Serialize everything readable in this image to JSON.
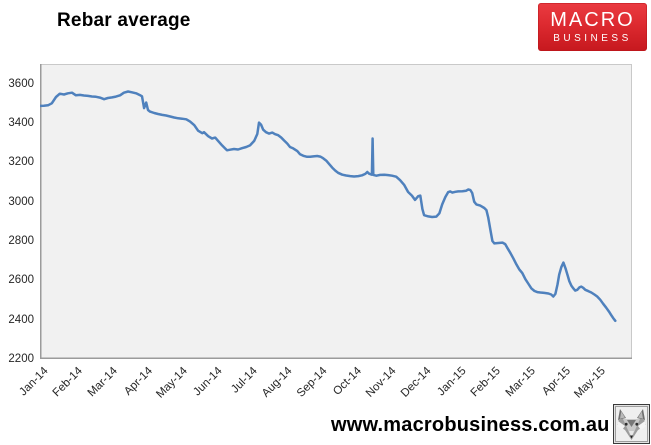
{
  "header": {
    "title": "Rebar average",
    "logo": {
      "line1": "MACRO",
      "line2": "BUSINESS",
      "bg_color": "#d8232a",
      "text_color": "#ffffff"
    }
  },
  "footer": {
    "url": "www.macrobusiness.com.au"
  },
  "icons": {
    "wolf": "wolf-head-logo"
  },
  "chart_data": {
    "type": "line",
    "title": "Rebar average",
    "series_name": "Rebar average",
    "line_color": "#4f81bd",
    "plot_bg": "#f1f1f1",
    "grid": "off",
    "legend": "none",
    "ylim": [
      2200,
      3700
    ],
    "y_ticks": [
      2200,
      2400,
      2600,
      2800,
      3000,
      3200,
      3400,
      3600
    ],
    "x_tick_labels": [
      "Jan-14",
      "Feb-14",
      "Mar-14",
      "Apr-14",
      "May-14",
      "Jun-14",
      "Jul-14",
      "Aug-14",
      "Sep-14",
      "Oct-14",
      "Nov-14",
      "Dec-14",
      "Jan-15",
      "Feb-15",
      "Mar-15",
      "Apr-15",
      "May-15"
    ],
    "x_axis_span_months": 17,
    "points": [
      [
        0,
        3487
      ],
      [
        0.11,
        3488
      ],
      [
        0.23,
        3490
      ],
      [
        0.34,
        3500
      ],
      [
        0.46,
        3532
      ],
      [
        0.57,
        3549
      ],
      [
        0.69,
        3545
      ],
      [
        0.8,
        3551
      ],
      [
        0.92,
        3554
      ],
      [
        1.03,
        3541
      ],
      [
        1.15,
        3543
      ],
      [
        1.26,
        3540
      ],
      [
        1.38,
        3538
      ],
      [
        1.49,
        3535
      ],
      [
        1.61,
        3533
      ],
      [
        1.72,
        3529
      ],
      [
        1.84,
        3521
      ],
      [
        1.95,
        3527
      ],
      [
        2.07,
        3530
      ],
      [
        2.18,
        3534
      ],
      [
        2.3,
        3541
      ],
      [
        2.41,
        3554
      ],
      [
        2.53,
        3560
      ],
      [
        2.64,
        3556
      ],
      [
        2.76,
        3551
      ],
      [
        2.87,
        3542
      ],
      [
        2.93,
        3536
      ],
      [
        2.99,
        3476
      ],
      [
        3.05,
        3504
      ],
      [
        3.1,
        3466
      ],
      [
        3.16,
        3458
      ],
      [
        3.28,
        3451
      ],
      [
        3.39,
        3446
      ],
      [
        3.51,
        3441
      ],
      [
        3.62,
        3438
      ],
      [
        3.74,
        3433
      ],
      [
        3.85,
        3428
      ],
      [
        3.97,
        3424
      ],
      [
        4.08,
        3422
      ],
      [
        4.2,
        3419
      ],
      [
        4.31,
        3407
      ],
      [
        4.43,
        3389
      ],
      [
        4.54,
        3361
      ],
      [
        4.66,
        3348
      ],
      [
        4.71,
        3353
      ],
      [
        4.83,
        3333
      ],
      [
        4.94,
        3321
      ],
      [
        5.03,
        3326
      ],
      [
        5.11,
        3310
      ],
      [
        5.23,
        3286
      ],
      [
        5.32,
        3270
      ],
      [
        5.37,
        3261
      ],
      [
        5.46,
        3264
      ],
      [
        5.57,
        3268
      ],
      [
        5.69,
        3265
      ],
      [
        5.8,
        3272
      ],
      [
        5.92,
        3278
      ],
      [
        6.03,
        3286
      ],
      [
        6.15,
        3309
      ],
      [
        6.24,
        3344
      ],
      [
        6.29,
        3402
      ],
      [
        6.35,
        3391
      ],
      [
        6.41,
        3366
      ],
      [
        6.49,
        3353
      ],
      [
        6.58,
        3346
      ],
      [
        6.67,
        3351
      ],
      [
        6.75,
        3343
      ],
      [
        6.84,
        3338
      ],
      [
        6.93,
        3326
      ],
      [
        7.01,
        3311
      ],
      [
        7.1,
        3296
      ],
      [
        7.18,
        3278
      ],
      [
        7.27,
        3271
      ],
      [
        7.39,
        3257
      ],
      [
        7.47,
        3241
      ],
      [
        7.56,
        3233
      ],
      [
        7.67,
        3228
      ],
      [
        7.76,
        3228
      ],
      [
        7.85,
        3230
      ],
      [
        7.96,
        3232
      ],
      [
        8.05,
        3229
      ],
      [
        8.13,
        3221
      ],
      [
        8.22,
        3209
      ],
      [
        8.31,
        3190
      ],
      [
        8.39,
        3173
      ],
      [
        8.48,
        3158
      ],
      [
        8.56,
        3147
      ],
      [
        8.68,
        3137
      ],
      [
        8.79,
        3133
      ],
      [
        8.91,
        3130
      ],
      [
        9.02,
        3128
      ],
      [
        9.14,
        3130
      ],
      [
        9.25,
        3134
      ],
      [
        9.34,
        3141
      ],
      [
        9.4,
        3151
      ],
      [
        9.45,
        3142
      ],
      [
        9.51,
        3138
      ],
      [
        9.53,
        3137
      ],
      [
        9.55,
        3321
      ],
      [
        9.57,
        3136
      ],
      [
        9.66,
        3132
      ],
      [
        9.77,
        3136
      ],
      [
        9.89,
        3137
      ],
      [
        10,
        3135
      ],
      [
        10.11,
        3132
      ],
      [
        10.23,
        3127
      ],
      [
        10.34,
        3109
      ],
      [
        10.46,
        3084
      ],
      [
        10.57,
        3049
      ],
      [
        10.68,
        3031
      ],
      [
        10.77,
        3009
      ],
      [
        10.86,
        3028
      ],
      [
        10.92,
        3031
      ],
      [
        10.98,
        2962
      ],
      [
        11.03,
        2931
      ],
      [
        11.15,
        2925
      ],
      [
        11.26,
        2922
      ],
      [
        11.38,
        2924
      ],
      [
        11.47,
        2941
      ],
      [
        11.55,
        2986
      ],
      [
        11.64,
        3023
      ],
      [
        11.72,
        3048
      ],
      [
        11.78,
        3052
      ],
      [
        11.84,
        3046
      ],
      [
        11.93,
        3050
      ],
      [
        12.01,
        3052
      ],
      [
        12.13,
        3053
      ],
      [
        12.24,
        3056
      ],
      [
        12.3,
        3062
      ],
      [
        12.36,
        3059
      ],
      [
        12.41,
        3044
      ],
      [
        12.47,
        3000
      ],
      [
        12.53,
        2986
      ],
      [
        12.64,
        2980
      ],
      [
        12.76,
        2968
      ],
      [
        12.82,
        2957
      ],
      [
        12.87,
        2920
      ],
      [
        12.93,
        2859
      ],
      [
        12.99,
        2800
      ],
      [
        13.05,
        2788
      ],
      [
        13.16,
        2790
      ],
      [
        13.28,
        2792
      ],
      [
        13.36,
        2784
      ],
      [
        13.41,
        2768
      ],
      [
        13.51,
        2738
      ],
      [
        13.59,
        2712
      ],
      [
        13.68,
        2681
      ],
      [
        13.76,
        2656
      ],
      [
        13.85,
        2637
      ],
      [
        13.94,
        2606
      ],
      [
        14.02,
        2584
      ],
      [
        14.11,
        2559
      ],
      [
        14.2,
        2546
      ],
      [
        14.28,
        2540
      ],
      [
        14.37,
        2538
      ],
      [
        14.48,
        2536
      ],
      [
        14.6,
        2533
      ],
      [
        14.68,
        2528
      ],
      [
        14.74,
        2518
      ],
      [
        14.8,
        2531
      ],
      [
        14.86,
        2579
      ],
      [
        14.91,
        2629
      ],
      [
        14.97,
        2667
      ],
      [
        15.03,
        2690
      ],
      [
        15.09,
        2661
      ],
      [
        15.15,
        2626
      ],
      [
        15.2,
        2596
      ],
      [
        15.26,
        2572
      ],
      [
        15.32,
        2558
      ],
      [
        15.37,
        2548
      ],
      [
        15.43,
        2552
      ],
      [
        15.49,
        2564
      ],
      [
        15.54,
        2568
      ],
      [
        15.6,
        2562
      ],
      [
        15.66,
        2552
      ],
      [
        15.75,
        2545
      ],
      [
        15.83,
        2538
      ],
      [
        15.92,
        2528
      ],
      [
        16,
        2518
      ],
      [
        16.09,
        2501
      ],
      [
        16.17,
        2481
      ],
      [
        16.26,
        2461
      ],
      [
        16.34,
        2441
      ],
      [
        16.4,
        2424
      ],
      [
        16.46,
        2408
      ],
      [
        16.52,
        2394
      ]
    ]
  }
}
